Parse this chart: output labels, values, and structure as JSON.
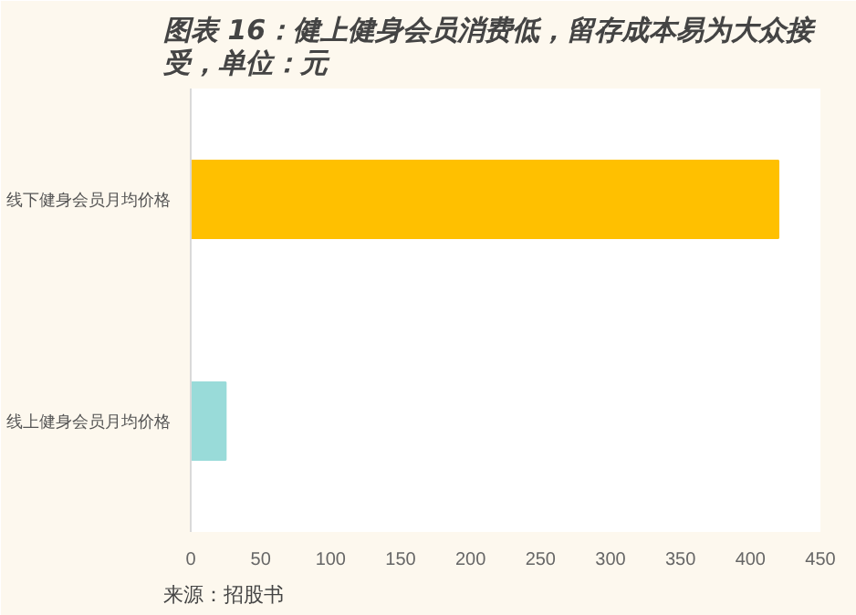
{
  "chart_data": {
    "type": "bar",
    "orientation": "horizontal",
    "title": "图表 16：健上健身会员消费低，留存成本易为大众接受，单位：元",
    "categories": [
      "线下健身会员月均价格",
      "线上健身会员月均价格"
    ],
    "values": [
      420,
      25
    ],
    "colors": [
      "#ffc000",
      "#99dbd9"
    ],
    "xlim": [
      0,
      450
    ],
    "xticks": [
      0,
      50,
      100,
      150,
      200,
      250,
      300,
      350,
      400,
      450
    ],
    "grid": false,
    "annotations": [
      "来源：招股书"
    ]
  }
}
